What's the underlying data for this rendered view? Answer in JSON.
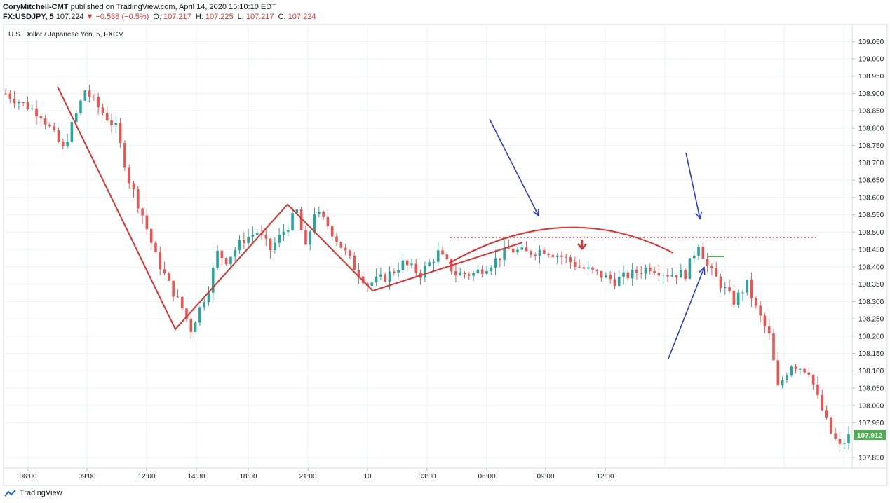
{
  "header": {
    "author": "CoryMitchell-CMT",
    "published_text": "published on TradingView.com, April 14, 2020 15:10:10 EDT",
    "symbol": "FX:USDJPY, 5",
    "last": "107.224",
    "change_arrow": "▼",
    "change": "−0.538 (−0.5%)",
    "o_label": "O:",
    "o_value": "107.217",
    "h_label": "H:",
    "h_value": "107.225",
    "l_label": "L:",
    "l_value": "107.217",
    "c_label": "C:",
    "c_value": "107.224"
  },
  "chart_title": "U.S. Dollar / Japanese Yen, 5, FXCM",
  "footer_brand": "TradingView",
  "colors": {
    "up": "#26a69a",
    "down": "#ef5350",
    "annotation_red": "#e0312f",
    "annotation_blue": "#2b3bd6",
    "level_green": "#4caf50",
    "grid": "#eef0f3"
  },
  "chart_data": {
    "type": "candlestick",
    "ylim": [
      107.83,
      109.11
    ],
    "y_ticks": [
      "109.050",
      "109.000",
      "108.950",
      "108.900",
      "108.850",
      "108.800",
      "108.750",
      "108.700",
      "108.650",
      "108.600",
      "108.550",
      "108.500",
      "108.450",
      "108.400",
      "108.350",
      "108.300",
      "108.250",
      "108.200",
      "108.150",
      "108.100",
      "108.050",
      "108.000",
      "107.950",
      "107.850"
    ],
    "x_ticks": [
      "06:00",
      "09:00",
      "12:00",
      "14:30",
      "18:00",
      "21:00",
      "10",
      "03:00",
      "06:00",
      "09:00",
      "12:00"
    ],
    "last_price_label": "107.912",
    "path": [
      [
        0,
        108.9
      ],
      [
        8,
        108.84
      ],
      [
        13,
        108.74
      ],
      [
        16,
        108.84
      ],
      [
        18,
        108.91
      ],
      [
        21,
        108.86
      ],
      [
        25,
        108.8
      ],
      [
        28,
        108.65
      ],
      [
        31,
        108.55
      ],
      [
        34,
        108.43
      ],
      [
        37,
        108.35
      ],
      [
        40,
        108.28
      ],
      [
        42,
        108.22
      ],
      [
        46,
        108.34
      ],
      [
        48,
        108.44
      ],
      [
        50,
        108.42
      ],
      [
        54,
        108.48
      ],
      [
        57,
        108.5
      ],
      [
        60,
        108.45
      ],
      [
        64,
        108.52
      ],
      [
        66,
        108.56
      ],
      [
        68,
        108.45
      ],
      [
        70,
        108.56
      ],
      [
        73,
        108.52
      ],
      [
        76,
        108.46
      ],
      [
        79,
        108.4
      ],
      [
        82,
        108.35
      ],
      [
        86,
        108.37
      ],
      [
        90,
        108.41
      ],
      [
        94,
        108.38
      ],
      [
        98,
        108.44
      ],
      [
        102,
        108.38
      ],
      [
        106,
        108.38
      ],
      [
        110,
        108.41
      ],
      [
        114,
        108.45
      ],
      [
        118,
        108.44
      ],
      [
        122,
        108.45
      ],
      [
        126,
        108.43
      ],
      [
        130,
        108.4
      ],
      [
        134,
        108.38
      ],
      [
        138,
        108.36
      ],
      [
        142,
        108.38
      ],
      [
        146,
        108.4
      ],
      [
        150,
        108.38
      ],
      [
        154,
        108.38
      ],
      [
        157,
        108.47
      ],
      [
        159,
        108.4
      ],
      [
        162,
        108.35
      ],
      [
        165,
        108.3
      ],
      [
        168,
        108.35
      ],
      [
        170,
        108.28
      ],
      [
        173,
        108.2
      ],
      [
        175,
        108.05
      ],
      [
        178,
        108.12
      ],
      [
        182,
        108.1
      ],
      [
        184,
        108.02
      ],
      [
        187,
        107.92
      ],
      [
        189,
        107.88
      ],
      [
        191,
        107.91
      ]
    ],
    "annotations": {
      "red_zigzag": [
        [
          82,
          108.92
        ],
        [
          250,
          108.22
        ],
        [
          410,
          108.58
        ],
        [
          532,
          108.33
        ]
      ],
      "red_rising_line": [
        [
          530,
          108.33
        ],
        [
          745,
          108.47
        ]
      ],
      "red_arc": [
        [
          640,
          108.41
        ],
        [
          805,
          108.51
        ],
        [
          960,
          108.44
        ]
      ],
      "resistance_level": 108.485,
      "green_level": 108.43,
      "blue_arrows": 3
    }
  }
}
